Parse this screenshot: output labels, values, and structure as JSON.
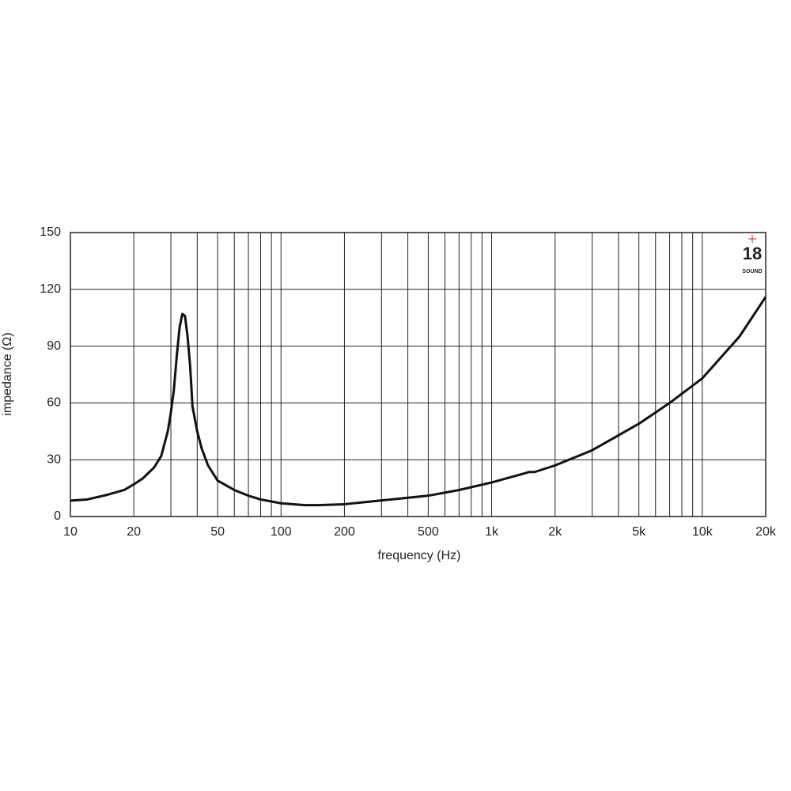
{
  "chart_data": {
    "type": "line",
    "x_label": "frequency (Hz)",
    "y_label": "impedance (Ω)",
    "log_x": true,
    "grid": true,
    "xlim": [
      10,
      20000
    ],
    "ylim": [
      0,
      150
    ],
    "xticks": [
      10,
      20,
      50,
      100,
      200,
      500,
      {
        "value": 1000,
        "label": "1k"
      },
      {
        "value": 2000,
        "label": "2k"
      },
      {
        "value": 5000,
        "label": "5k"
      },
      {
        "value": 10000,
        "label": "10k"
      },
      {
        "value": 20000,
        "label": "20k"
      }
    ],
    "xgrid": [
      30,
      40,
      60,
      70,
      80,
      90,
      300,
      400,
      600,
      700,
      800,
      900,
      3000,
      4000,
      6000,
      7000,
      8000,
      9000
    ],
    "yticks": [
      0,
      30,
      60,
      90,
      120,
      150
    ],
    "logo": {
      "number": "18",
      "brand": "SOUND"
    },
    "series": [
      {
        "color": "#111111",
        "x": [
          10,
          12,
          15,
          18,
          20,
          22,
          25,
          27,
          29,
          30,
          31,
          32,
          33,
          34,
          35,
          36,
          37,
          38,
          40,
          42,
          45,
          50,
          60,
          70,
          80,
          100,
          130,
          150,
          200,
          300,
          500,
          700,
          1000,
          1400,
          1500,
          1600,
          2000,
          3000,
          5000,
          7000,
          10000,
          15000,
          20000
        ],
        "values": [
          8.4,
          9,
          11.5,
          14,
          17,
          20,
          26,
          32,
          45,
          55,
          67,
          85,
          100,
          107,
          106,
          95,
          80,
          58,
          45,
          36,
          27,
          19,
          14,
          11,
          9,
          7,
          6,
          6,
          6.5,
          8.5,
          11,
          14,
          18,
          22.5,
          23.5,
          23.5,
          27,
          35,
          49,
          60,
          73,
          95,
          116
        ]
      }
    ]
  }
}
